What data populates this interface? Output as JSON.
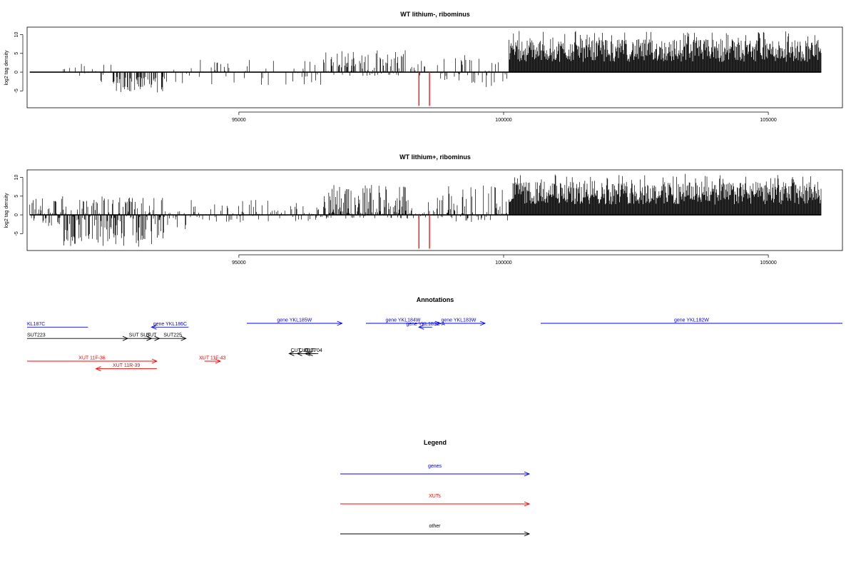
{
  "chart_data": [
    {
      "type": "bar",
      "title": "WT lithium-, ribominus",
      "ylabel": "log2 tag density",
      "xlabel": "",
      "xlim": [
        91000,
        106400
      ],
      "ylim": [
        -9.5,
        12
      ],
      "xticks": [
        95000,
        100000,
        105000
      ],
      "yticks": [
        -5,
        0,
        5,
        10
      ],
      "grid": false,
      "baseline": 0,
      "highlight_color": "#ff0000",
      "highlights": [
        {
          "x": 98400,
          "value": -9
        },
        {
          "x": 98600,
          "value": -9
        }
      ],
      "segments": [
        {
          "from": 91050,
          "to": 91950,
          "min": 0,
          "max": 2,
          "density": 0.05
        },
        {
          "from": 91950,
          "to": 92600,
          "min": -3,
          "max": 2.5,
          "density": 0.25
        },
        {
          "from": 92600,
          "to": 93600,
          "min": -5.5,
          "max": 0,
          "density": 0.6
        },
        {
          "from": 93600,
          "to": 94100,
          "min": -3,
          "max": 1,
          "density": 0.2
        },
        {
          "from": 94100,
          "to": 96600,
          "min": -3.5,
          "max": 3.5,
          "density": 0.2
        },
        {
          "from": 96600,
          "to": 98200,
          "min": -1,
          "max": 6,
          "density": 0.7
        },
        {
          "from": 98200,
          "to": 98800,
          "min": -1,
          "max": 3,
          "density": 0.3
        },
        {
          "from": 98800,
          "to": 100100,
          "min": -4,
          "max": 5,
          "density": 0.35
        },
        {
          "from": 100100,
          "to": 106000,
          "min": 0,
          "max": 11,
          "density": 1.0
        }
      ]
    },
    {
      "type": "bar",
      "title": "WT lithium+, ribominus",
      "ylabel": "log2 tag density",
      "xlabel": "",
      "xlim": [
        91000,
        106400
      ],
      "ylim": [
        -9.5,
        12
      ],
      "xticks": [
        95000,
        100000,
        105000
      ],
      "yticks": [
        -5,
        0,
        5,
        10
      ],
      "grid": false,
      "baseline": 0,
      "highlight_color": "#ff0000",
      "highlights": [
        {
          "x": 98400,
          "value": -9
        },
        {
          "x": 98600,
          "value": -9
        }
      ],
      "segments": [
        {
          "from": 91050,
          "to": 91650,
          "min": -3,
          "max": 4.5,
          "density": 0.9
        },
        {
          "from": 91650,
          "to": 93600,
          "min": -8.5,
          "max": 5,
          "density": 1.0
        },
        {
          "from": 93600,
          "to": 94100,
          "min": -4,
          "max": 1.5,
          "density": 0.3
        },
        {
          "from": 94100,
          "to": 96600,
          "min": -2,
          "max": 4,
          "density": 0.4
        },
        {
          "from": 96600,
          "to": 98200,
          "min": -1,
          "max": 8,
          "density": 0.9
        },
        {
          "from": 98200,
          "to": 98800,
          "min": -1,
          "max": 5,
          "density": 0.5
        },
        {
          "from": 98800,
          "to": 100100,
          "min": -2,
          "max": 8,
          "density": 0.6
        },
        {
          "from": 100100,
          "to": 106000,
          "min": 0,
          "max": 11,
          "density": 1.0
        }
      ]
    }
  ],
  "annotations": {
    "title": "Annotations",
    "items": [
      {
        "label": "KL187C",
        "color": "#0000ff",
        "from": 91000,
        "to": 92150,
        "dir": "none",
        "row": 0.5
      },
      {
        "label": "gene YKL185W",
        "color": "#0000ff",
        "from": 95150,
        "to": 96950,
        "dir": "right",
        "row": 0
      },
      {
        "label": "gene YKL186C",
        "color": "#0000ff",
        "from": 93350,
        "to": 94050,
        "dir": "left",
        "row": 0.5
      },
      {
        "label": "gene YKL184W",
        "color": "#0000ff",
        "from": 97400,
        "to": 98800,
        "dir": "right",
        "row": 0
      },
      {
        "label": "gene YKL183C-A",
        "color": "#0000ff",
        "from": 98400,
        "to": 98650,
        "dir": "left",
        "row": 0.5
      },
      {
        "label": "gene YKL183W",
        "color": "#0000ff",
        "from": 98650,
        "to": 99650,
        "dir": "right",
        "row": 0
      },
      {
        "label": "gene YKL182W",
        "color": "#0000ff",
        "from": 100700,
        "to": 106400,
        "dir": "none",
        "row": 0
      },
      {
        "label": "SUT223",
        "color": "#000000",
        "from": 91000,
        "to": 92900,
        "dir": "right",
        "row": 2
      },
      {
        "label": "SUT SUT",
        "color": "#000000",
        "from": 92900,
        "to": 93350,
        "dir": "right",
        "row": 2
      },
      {
        "label": "SUT",
        "color": "#000000",
        "from": 93200,
        "to": 93500,
        "dir": "right",
        "row": 2
      },
      {
        "label": "SUT225",
        "color": "#000000",
        "from": 93500,
        "to": 94000,
        "dir": "right",
        "row": 2
      },
      {
        "label": "CUT",
        "color": "#000000",
        "from": 95950,
        "to": 96200,
        "dir": "left",
        "row": 4
      },
      {
        "label": "CUT",
        "color": "#000000",
        "from": 96100,
        "to": 96350,
        "dir": "left",
        "row": 4
      },
      {
        "label": "CUT",
        "color": "#000000",
        "from": 96250,
        "to": 96450,
        "dir": "left",
        "row": 4
      },
      {
        "label": "CUT704",
        "color": "#000000",
        "from": 96300,
        "to": 96500,
        "dir": "left",
        "row": 4
      },
      {
        "label": "XUT 11F-36",
        "color": "#ff0000",
        "from": 91000,
        "to": 93450,
        "dir": "right",
        "row": 5
      },
      {
        "label": "XUT 11R-39",
        "color": "#ff0000",
        "from": 92300,
        "to": 93450,
        "dir": "left",
        "row": 6
      },
      {
        "label": "XUT 11F-43",
        "color": "#ff0000",
        "from": 94350,
        "to": 94650,
        "dir": "right",
        "row": 5
      }
    ]
  },
  "legend": {
    "title": "Legend",
    "items": [
      {
        "label": "genes",
        "color": "#0000ff"
      },
      {
        "label": "XUTs",
        "color": "#ff0000"
      },
      {
        "label": "other",
        "color": "#000000"
      }
    ]
  }
}
